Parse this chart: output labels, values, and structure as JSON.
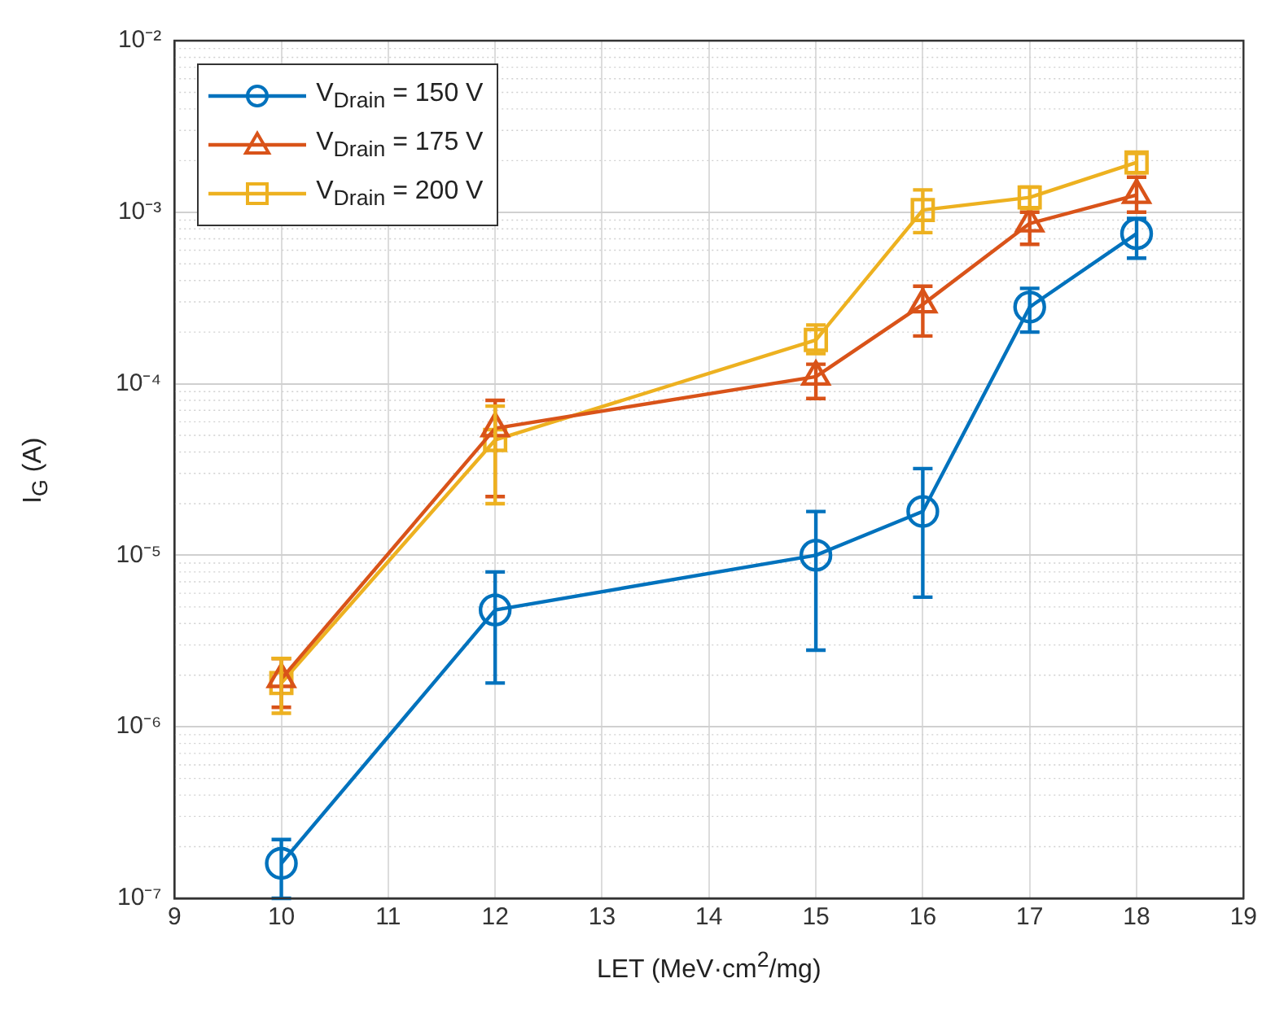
{
  "chart_data": {
    "type": "line",
    "xlabel": "LET (MeV·cm$^{2}$/mg)",
    "ylabel": "I$_{G}$ (A)",
    "x": [
      10,
      12,
      15,
      16,
      17,
      18
    ],
    "xlim": [
      9,
      19
    ],
    "xticks": [
      9,
      10,
      11,
      12,
      13,
      14,
      15,
      16,
      17,
      18,
      19
    ],
    "ylim": [
      1e-07,
      0.01
    ],
    "yticks": [
      {
        "value": 1e-07,
        "label": "10⁻⁷"
      },
      {
        "value": 1e-06,
        "label": "10⁻⁶"
      },
      {
        "value": 1e-05,
        "label": "10⁻⁵"
      },
      {
        "value": 0.0001,
        "label": "10⁻⁴"
      },
      {
        "value": 0.001,
        "label": "10⁻³"
      },
      {
        "value": 0.01,
        "label": "10⁻²"
      }
    ],
    "log": "y",
    "grid": true,
    "legend": "top left",
    "line_style": "solid",
    "series": [
      {
        "name": "V$_{Drain}$ = 150 V",
        "color": "#0072bd",
        "marker": "circle",
        "values": [
          1.6e-07,
          4.8e-06,
          1e-05,
          1.8e-05,
          0.00028,
          0.00075
        ],
        "errors": [
          [
            1e-07,
            2.2e-07
          ],
          [
            1.8e-06,
            8e-06
          ],
          [
            2.8e-06,
            1.8e-05
          ],
          [
            5.7e-06,
            3.2e-05
          ],
          [
            0.0002,
            0.00036
          ],
          [
            0.00054,
            0.00092
          ]
        ]
      },
      {
        "name": "V$_{Drain}$ = 175 V",
        "color": "#d95319",
        "marker": "triangle",
        "values": [
          1.9e-06,
          5.5e-05,
          0.00011,
          0.00029,
          0.00086,
          0.00126
        ],
        "errors": [
          [
            1.3e-06,
            2.5e-06
          ],
          [
            2.2e-05,
            8e-05
          ],
          [
            8.2e-05,
            0.00013
          ],
          [
            0.00019,
            0.00037
          ],
          [
            0.00065,
            0.001
          ],
          [
            0.001,
            0.0016
          ]
        ]
      },
      {
        "name": "V$_{Drain}$ = 200 V",
        "color": "#edb120",
        "marker": "square",
        "values": [
          1.8e-06,
          4.7e-05,
          0.00018,
          0.00103,
          0.00122,
          0.00195
        ],
        "errors": [
          [
            1.2e-06,
            2.5e-06
          ],
          [
            2e-05,
            7.4e-05
          ],
          [
            0.00015,
            0.00022
          ],
          [
            0.00076,
            0.00135
          ],
          [
            0.00105,
            0.0014
          ],
          [
            0.0017,
            0.0022
          ]
        ]
      }
    ]
  }
}
